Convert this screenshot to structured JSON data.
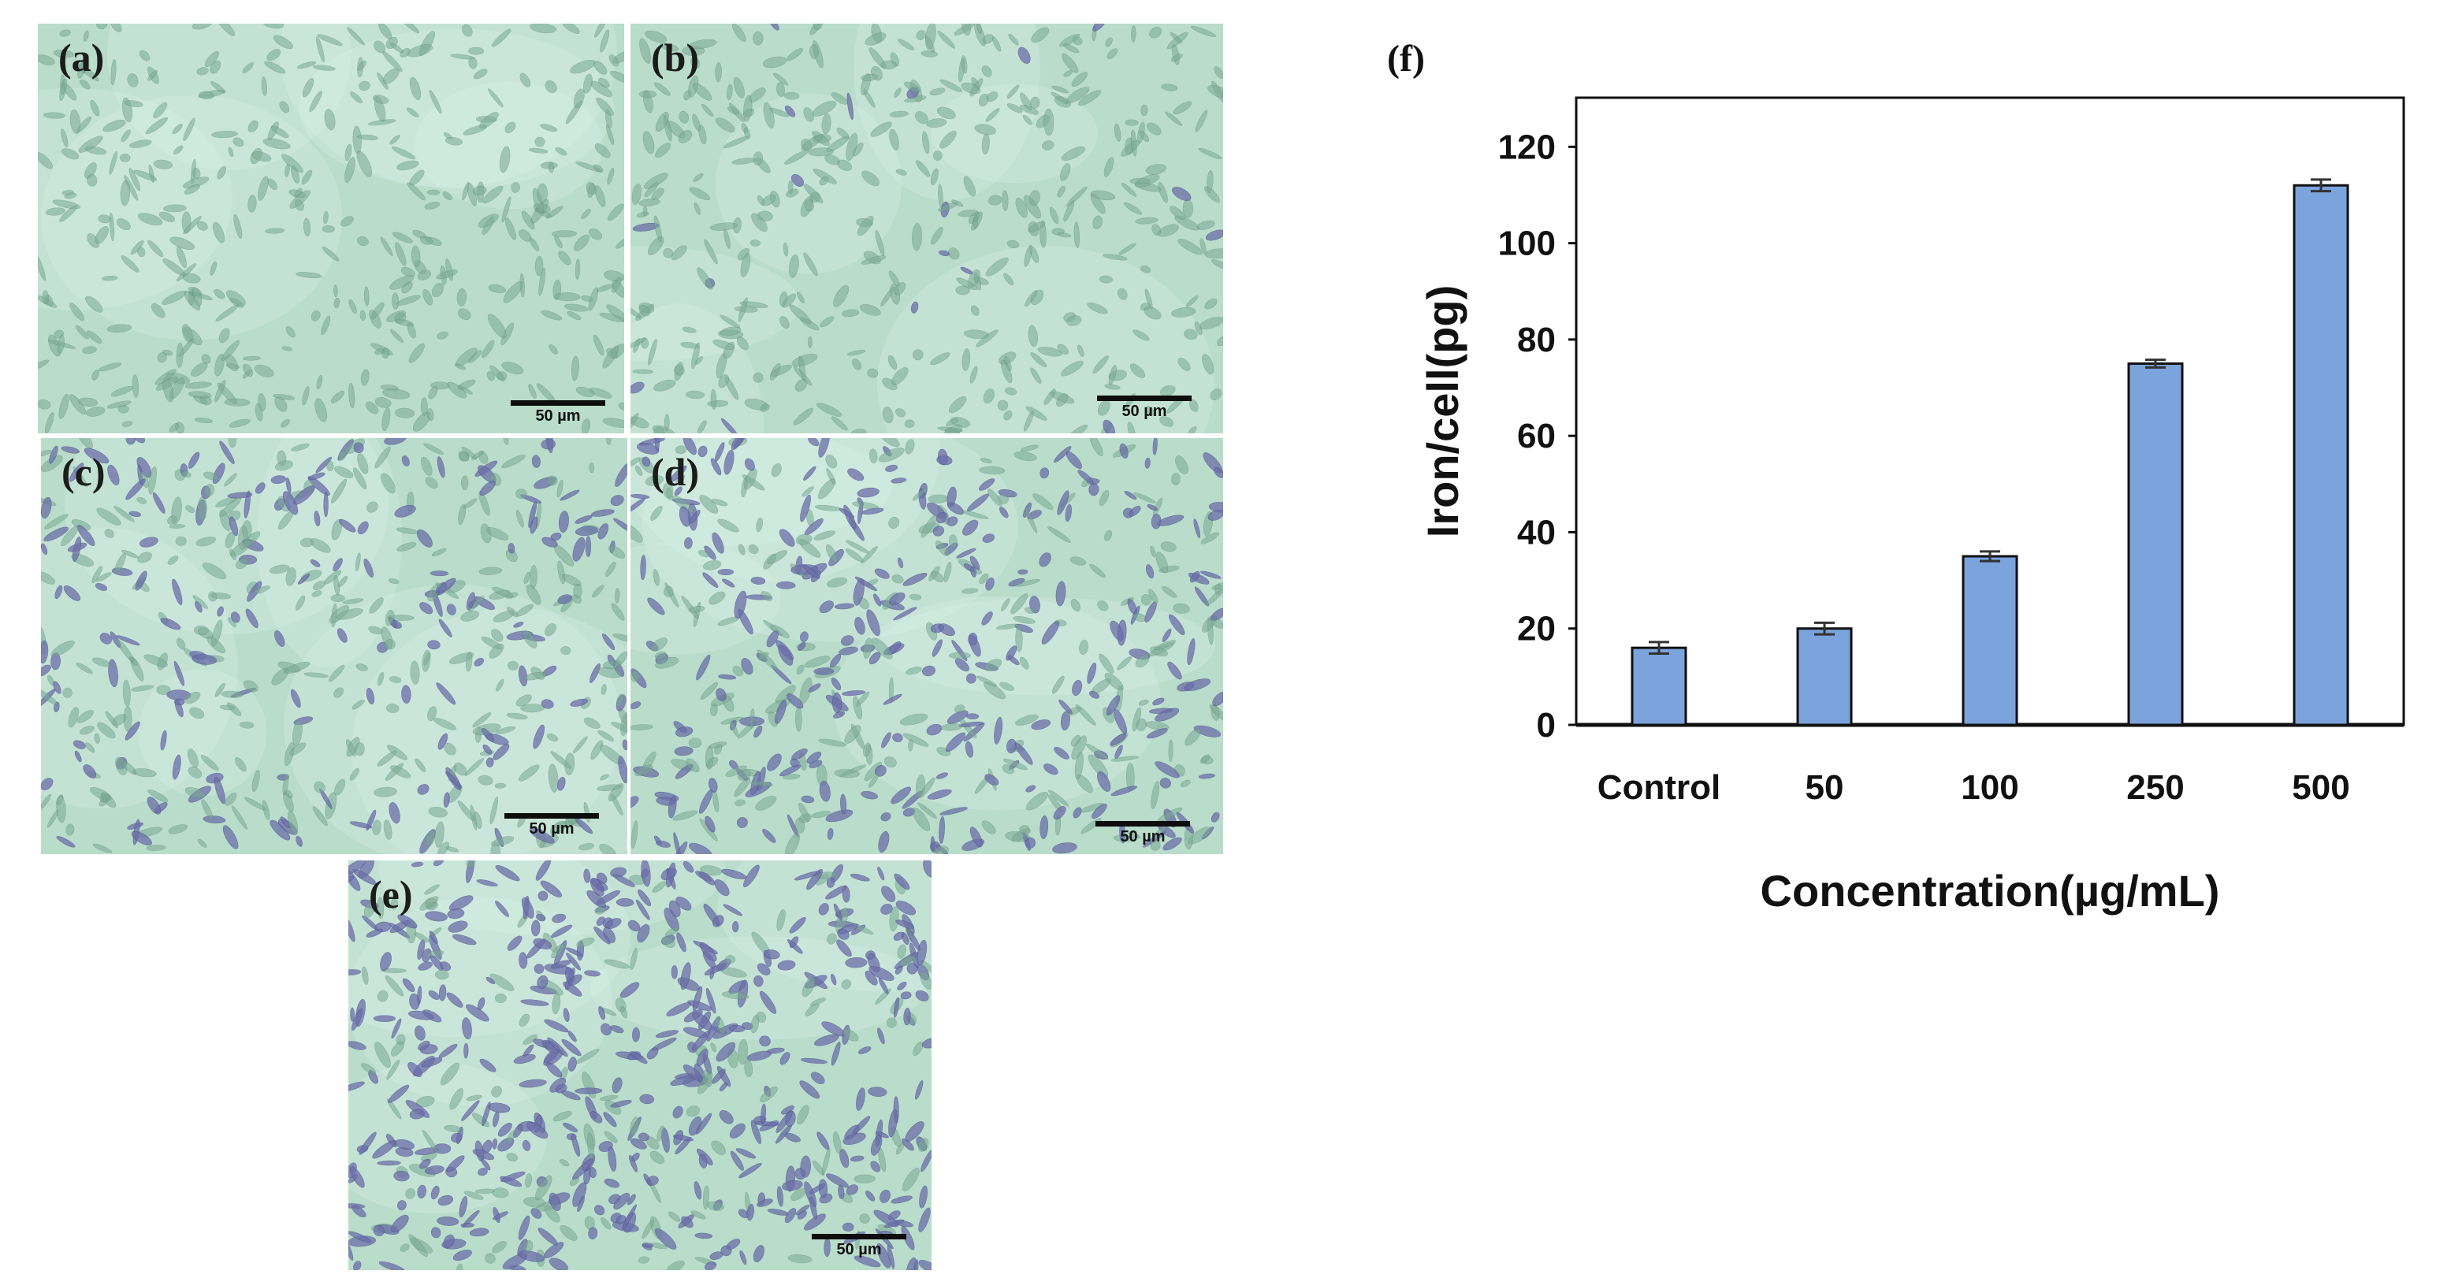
{
  "micrographs": [
    {
      "id": "a",
      "letter": "(a)",
      "scale_label": "50 µm",
      "stain_level": 0.0
    },
    {
      "id": "b",
      "letter": "(b)",
      "scale_label": "50 µm",
      "stain_level": 0.05
    },
    {
      "id": "c",
      "letter": "(c)",
      "scale_label": "50 µm",
      "stain_level": 0.35
    },
    {
      "id": "d",
      "letter": "(d)",
      "scale_label": "50 µm",
      "stain_level": 0.5
    },
    {
      "id": "e",
      "letter": "(e)",
      "scale_label": "50 µm",
      "stain_level": 0.75
    }
  ],
  "colors": {
    "bar_fill": "#7ba3dc",
    "bar_stroke": "#111111",
    "micro_background": "#b9dccb",
    "cell_color": "#7aa994",
    "stain_color": "#6b6fa8"
  },
  "chart_data": {
    "type": "bar",
    "panel_letter": "(f)",
    "categories": [
      "Control",
      "50",
      "100",
      "250",
      "500"
    ],
    "values": [
      16,
      20,
      35,
      75,
      112
    ],
    "errors": [
      1.2,
      1.2,
      1.0,
      0.8,
      1.2
    ],
    "title": "",
    "xlabel": "Concentration(µg/mL)",
    "ylabel": "Iron/cell(pg)",
    "ylim": [
      0,
      120
    ],
    "yticks": [
      0,
      20,
      40,
      60,
      80,
      100,
      120
    ],
    "grid": false,
    "legend": "none"
  }
}
